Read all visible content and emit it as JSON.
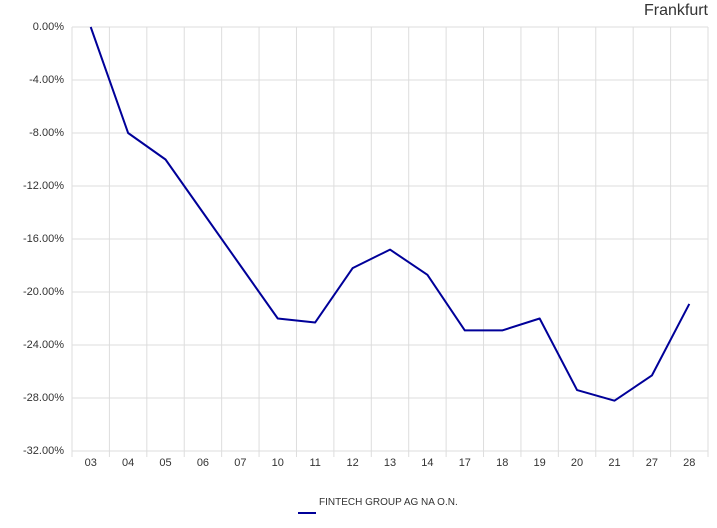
{
  "chart_data": {
    "type": "line",
    "title": "Frankfurt",
    "categories": [
      "03",
      "04",
      "05",
      "06",
      "07",
      "10",
      "11",
      "12",
      "13",
      "14",
      "17",
      "18",
      "19",
      "20",
      "21",
      "27",
      "28"
    ],
    "series": [
      {
        "name": "FINTECH GROUP AG NA O.N.",
        "color": "#000099",
        "values": [
          0,
          -8.0,
          -10.0,
          -14.0,
          -18.0,
          -22.0,
          -22.3,
          -18.2,
          -16.8,
          -18.7,
          -22.9,
          -22.9,
          -22.0,
          -27.4,
          -28.2,
          -26.3,
          -20.9
        ]
      }
    ],
    "ylim": [
      -32,
      0
    ],
    "yticks": [
      {
        "value": 0,
        "label": "0.00%"
      },
      {
        "value": -4,
        "label": "-4.00%"
      },
      {
        "value": -8,
        "label": "-8.00%"
      },
      {
        "value": -12,
        "label": "-12.00%"
      },
      {
        "value": -16,
        "label": "-16.00%"
      },
      {
        "value": -20,
        "label": "-20.00%"
      },
      {
        "value": -24,
        "label": "-24.00%"
      },
      {
        "value": -28,
        "label": "-28.00%"
      },
      {
        "value": -32,
        "label": "-32.00%"
      }
    ],
    "grid": true
  }
}
